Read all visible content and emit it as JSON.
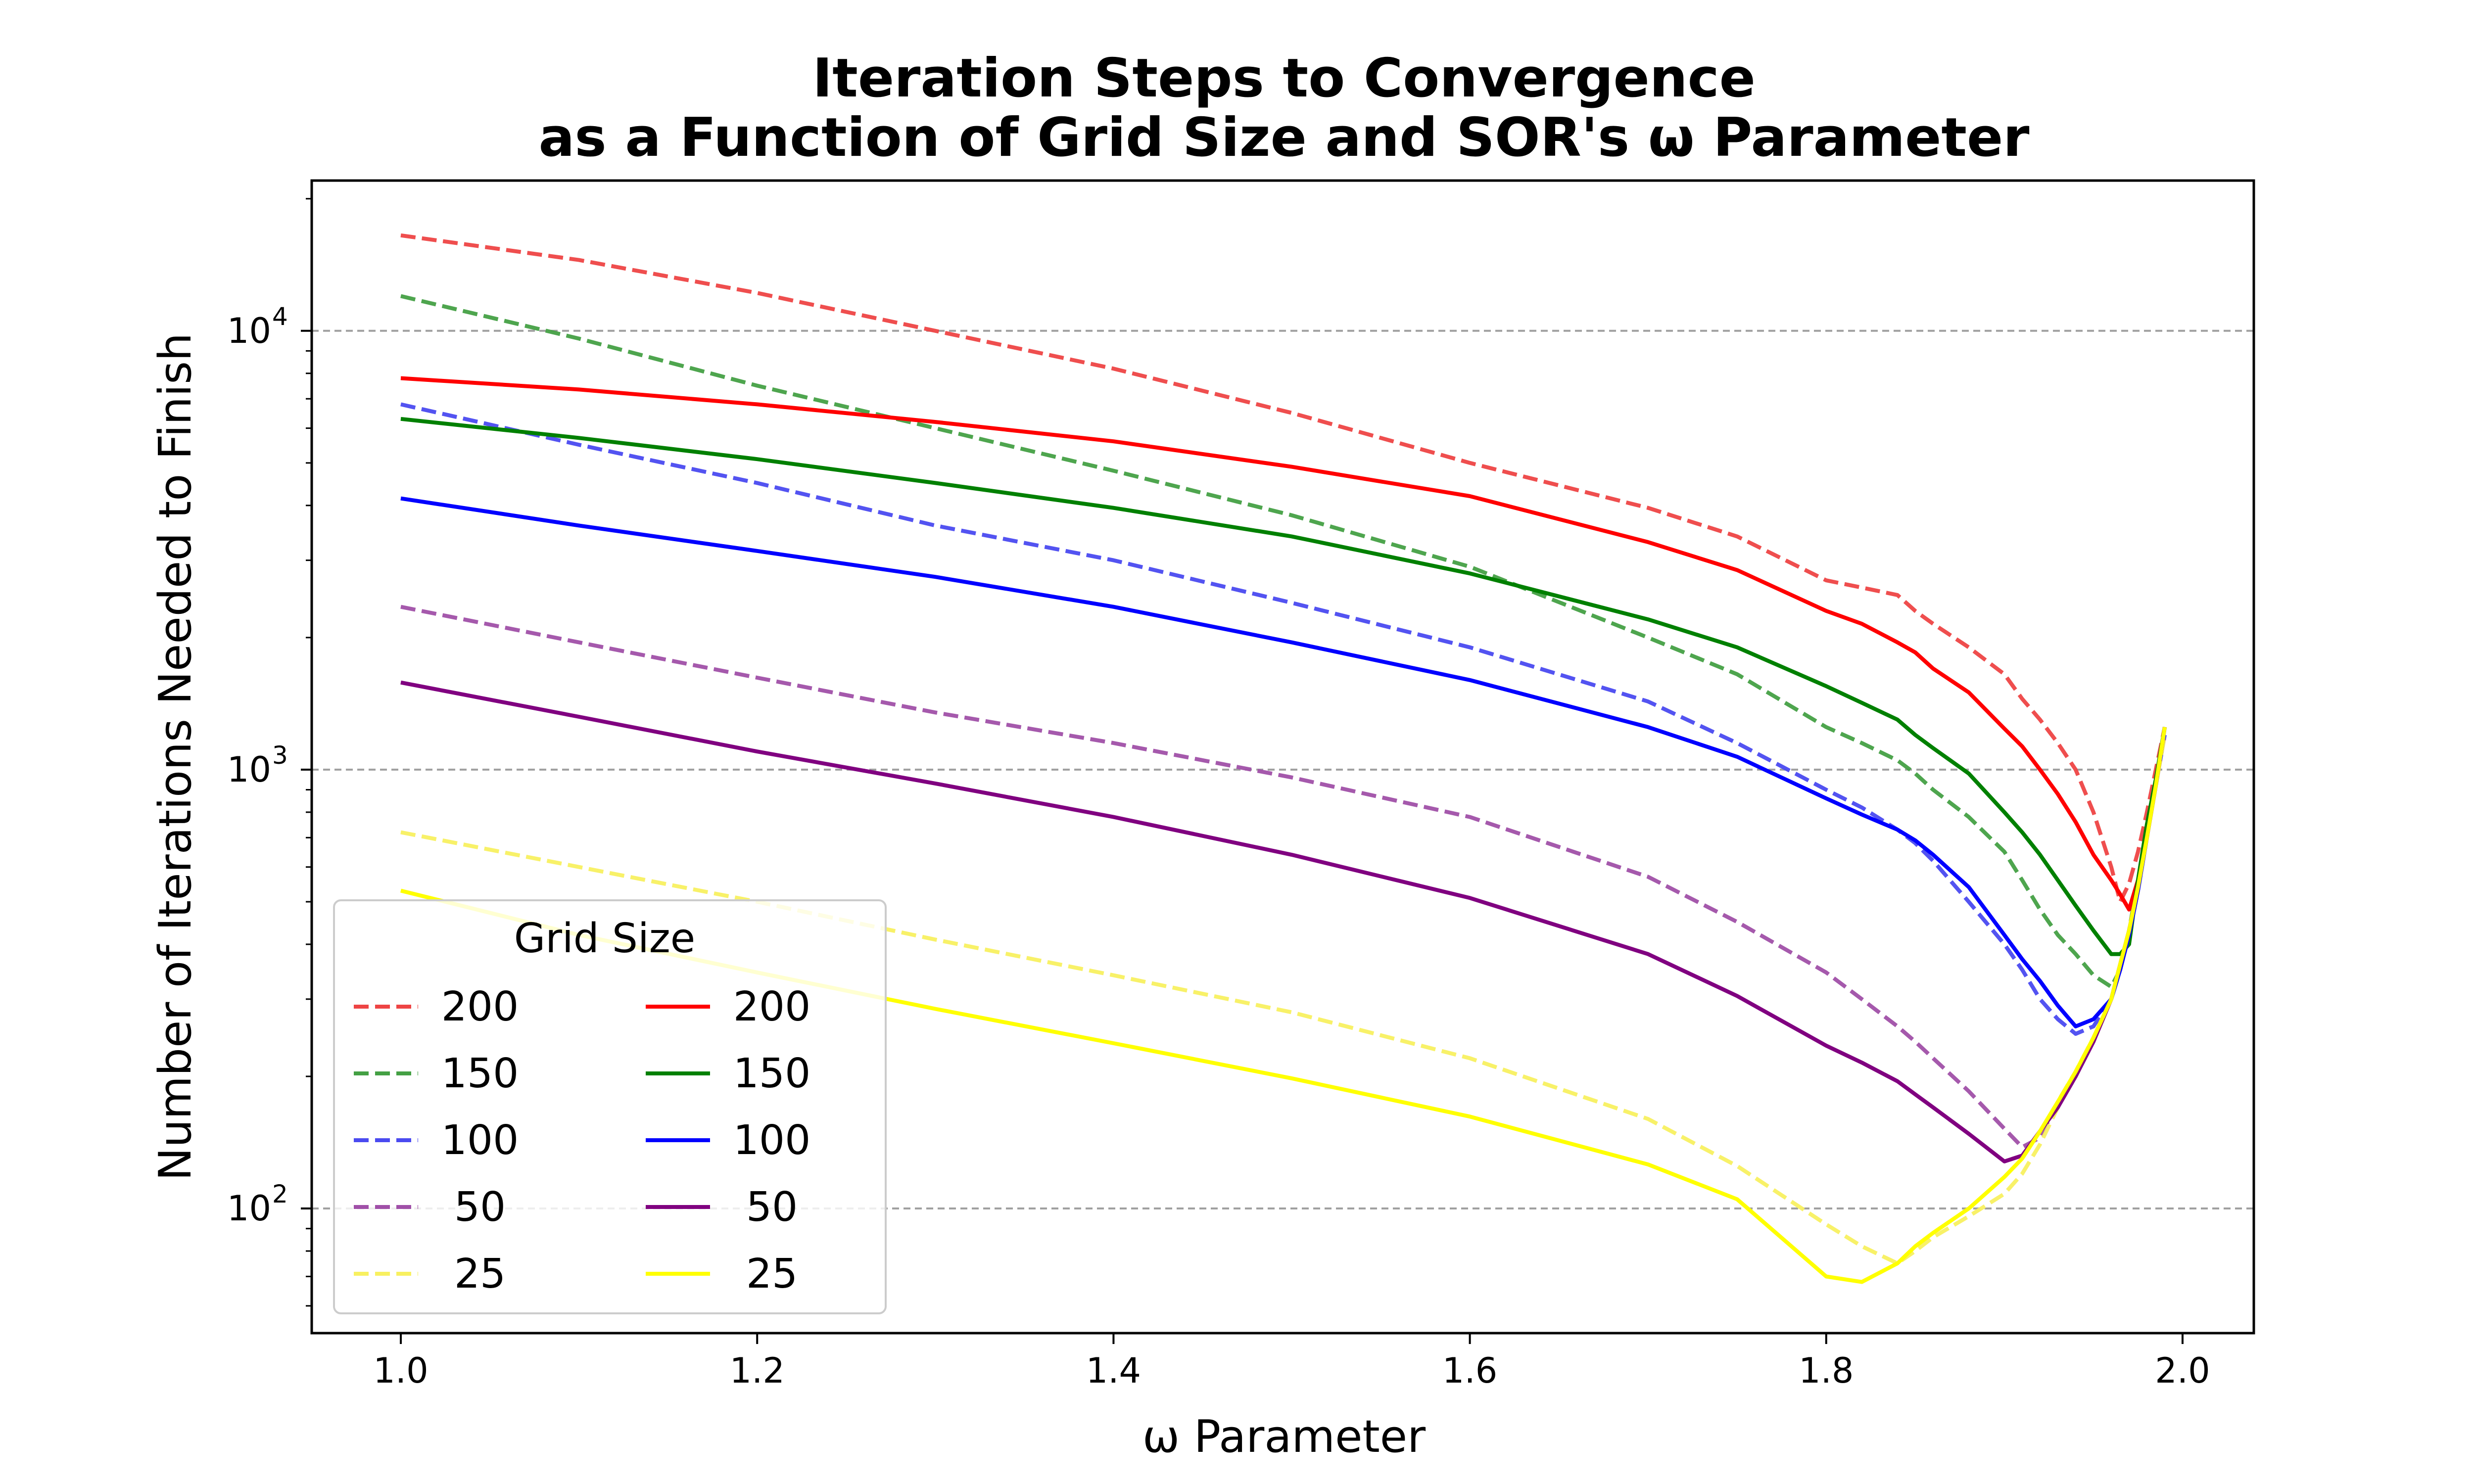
{
  "chart_data": {
    "type": "line",
    "title_line1": "Iteration Steps to Convergence",
    "title_line2": "as a Function of Grid Size and SOR's ω Parameter",
    "xlabel": "ω Parameter",
    "ylabel": "Number of Iterations Needed to Finish",
    "xscale": "linear",
    "yscale": "log",
    "xlim": [
      0.95,
      2.04
    ],
    "ylim": [
      52,
      22000
    ],
    "xticks": [
      1.0,
      1.2,
      1.4,
      1.6,
      1.8,
      2.0
    ],
    "xtick_labels": [
      "1.0",
      "1.2",
      "1.4",
      "1.6",
      "1.8",
      "2.0"
    ],
    "yticks": [
      100,
      1000,
      10000
    ],
    "ytick_bases": [
      "10",
      "10",
      "10"
    ],
    "ytick_exponents": [
      "2",
      "3",
      "4"
    ],
    "grid": "horizontal dashed at major y ticks",
    "legend": {
      "title": "Grid Size",
      "placement": "lower-left",
      "columns": 2
    },
    "x": [
      1.0,
      1.1,
      1.2,
      1.3,
      1.4,
      1.5,
      1.6,
      1.7,
      1.75,
      1.8,
      1.82,
      1.84,
      1.85,
      1.86,
      1.88,
      1.9,
      1.91,
      1.92,
      1.93,
      1.94,
      1.95,
      1.96,
      1.965,
      1.97,
      1.975,
      1.98,
      1.985,
      1.99
    ],
    "series": [
      {
        "name": "200",
        "style": "dashed",
        "color": "#ee4444",
        "values": [
          16500,
          14500,
          12200,
          10000,
          8200,
          6500,
          5000,
          3950,
          3400,
          2700,
          2600,
          2500,
          2300,
          2150,
          1900,
          1650,
          1450,
          1300,
          1150,
          1000,
          800,
          600,
          500,
          550,
          650,
          800,
          1000,
          1250
        ]
      },
      {
        "name": "150",
        "style": "dashed",
        "color": "#44a044",
        "values": [
          12000,
          9600,
          7500,
          6000,
          4800,
          3800,
          2900,
          2000,
          1650,
          1250,
          1150,
          1050,
          980,
          900,
          780,
          650,
          560,
          480,
          420,
          380,
          340,
          320,
          350,
          430,
          560,
          750,
          950,
          1200
        ]
      },
      {
        "name": "100",
        "style": "dashed",
        "color": "#4a4af0",
        "values": [
          6800,
          5500,
          4500,
          3600,
          3000,
          2400,
          1900,
          1430,
          1150,
          900,
          820,
          730,
          680,
          620,
          500,
          400,
          350,
          300,
          270,
          250,
          260,
          300,
          350,
          420,
          530,
          700,
          920,
          1200
        ]
      },
      {
        "name": "50",
        "style": "dashed",
        "color": "#a050a8",
        "values": [
          2350,
          1950,
          1620,
          1350,
          1150,
          960,
          780,
          570,
          450,
          345,
          300,
          260,
          240,
          220,
          185,
          152,
          138,
          145,
          175,
          205,
          245,
          300,
          360,
          430,
          540,
          700,
          920,
          1200
        ]
      },
      {
        "name": "25",
        "style": "dashed",
        "color": "#f8f060",
        "values": [
          720,
          600,
          500,
          410,
          340,
          280,
          220,
          160,
          125,
          92,
          82,
          75,
          80,
          86,
          96,
          108,
          120,
          140,
          170,
          205,
          245,
          300,
          360,
          430,
          540,
          700,
          920,
          1200
        ]
      },
      {
        "name": "200",
        "style": "solid",
        "color": "#ff0000",
        "values": [
          7800,
          7350,
          6800,
          6200,
          5600,
          4900,
          4200,
          3300,
          2850,
          2300,
          2150,
          1950,
          1850,
          1700,
          1500,
          1240,
          1130,
          1000,
          880,
          760,
          640,
          560,
          520,
          480,
          560,
          700,
          920,
          1250
        ]
      },
      {
        "name": "150",
        "style": "solid",
        "color": "#008000",
        "values": [
          6300,
          5700,
          5100,
          4500,
          3950,
          3400,
          2800,
          2200,
          1900,
          1550,
          1420,
          1300,
          1200,
          1120,
          980,
          800,
          720,
          640,
          560,
          490,
          430,
          380,
          380,
          400,
          560,
          750,
          950,
          1250
        ]
      },
      {
        "name": "100",
        "style": "solid",
        "color": "#0000ff",
        "values": [
          4150,
          3600,
          3150,
          2750,
          2350,
          1950,
          1600,
          1250,
          1070,
          860,
          790,
          730,
          690,
          640,
          540,
          420,
          370,
          330,
          290,
          260,
          270,
          300,
          350,
          420,
          530,
          700,
          920,
          1250
        ]
      },
      {
        "name": "50",
        "style": "solid",
        "color": "#800080",
        "values": [
          1580,
          1320,
          1100,
          930,
          780,
          640,
          510,
          380,
          305,
          235,
          215,
          195,
          182,
          170,
          148,
          128,
          132,
          150,
          170,
          200,
          240,
          300,
          360,
          430,
          540,
          700,
          920,
          1250
        ]
      },
      {
        "name": "25",
        "style": "solid",
        "color": "#ffff00",
        "values": [
          530,
          420,
          345,
          285,
          238,
          198,
          162,
          126,
          105,
          70,
          68,
          75,
          82,
          88,
          100,
          118,
          130,
          150,
          175,
          205,
          245,
          300,
          360,
          430,
          540,
          700,
          920,
          1250
        ]
      }
    ]
  }
}
